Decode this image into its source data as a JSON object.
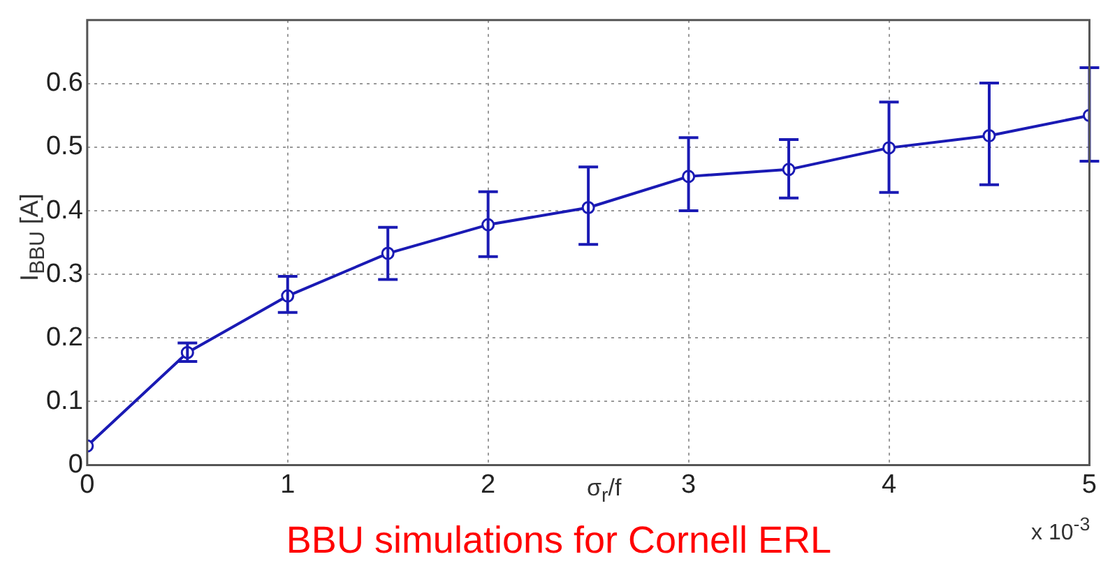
{
  "chart_data": {
    "type": "line",
    "xlabel": "σ$_{r}$/f",
    "ylabel": "I$_{BBU}$ [A]",
    "annotations": [
      "x 10$^{-3}$",
      "BBU simulations for Cornell ERL"
    ],
    "x": [
      0,
      0.5,
      1,
      1.5,
      2,
      2.5,
      3,
      3.5,
      4,
      4.5,
      5
    ],
    "series": [
      {
        "color": "#1a1ab4",
        "values": [
          0.03,
          0.177,
          0.266,
          0.333,
          0.378,
          0.405,
          0.454,
          0.465,
          0.499,
          0.518,
          0.55
        ],
        "errors": [
          null,
          [
            0.163,
            0.192
          ],
          [
            0.24,
            0.297
          ],
          [
            0.292,
            0.374
          ],
          [
            0.328,
            0.43
          ],
          [
            0.347,
            0.469
          ],
          [
            0.4,
            0.515
          ],
          [
            0.42,
            0.512
          ],
          [
            0.429,
            0.571
          ],
          [
            0.441,
            0.601
          ],
          [
            0.478,
            0.625
          ]
        ]
      }
    ],
    "xlim": [
      0,
      5
    ],
    "xticks": [
      0,
      1,
      2,
      3,
      4,
      5
    ],
    "ylim": [
      0,
      0.7
    ],
    "yticks": [
      0,
      0.1,
      0.2,
      0.3,
      0.4,
      0.5,
      0.6
    ],
    "grid": true,
    "marker": "circle",
    "line_style": "solid"
  }
}
